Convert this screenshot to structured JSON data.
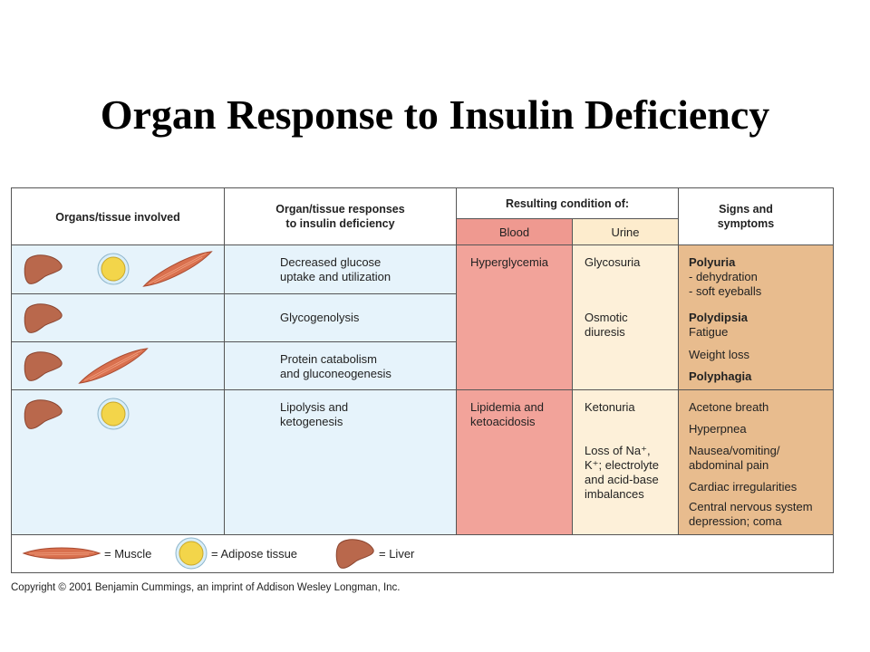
{
  "title": "Organ Response to Insulin Deficiency",
  "table": {
    "headers": {
      "organs": "Organs/tissue involved",
      "responses": [
        "Organ/tissue responses",
        "to insulin deficiency"
      ],
      "resulting": "Resulting condition of:",
      "blood": "Blood",
      "urine": "Urine",
      "signs": [
        "Signs and",
        "symptoms"
      ]
    },
    "responses": [
      [
        "Decreased glucose",
        "uptake and utilization"
      ],
      [
        "Glycogenolysis"
      ],
      [
        "Protein catabolism",
        "and gluconeogenesis"
      ],
      [
        "Lipolysis and",
        "ketogenesis"
      ]
    ],
    "blood": [
      [
        "Hyperglycemia"
      ],
      [
        "Lipidemia and",
        "ketoacidosis"
      ]
    ],
    "urine": [
      [
        "Glycosuria"
      ],
      [
        "Osmotic",
        "diuresis"
      ],
      [
        "Ketonuria"
      ],
      [
        "Loss of Na⁺,",
        "K⁺; electrolyte",
        "and acid-base",
        "imbalances"
      ]
    ],
    "signs": [
      [
        "Polyuria",
        "- dehydration",
        "- soft eyeballs"
      ],
      [
        "Polydipsia",
        "Fatigue"
      ],
      [
        "Weight loss"
      ],
      [
        "Polyphagia"
      ],
      [
        "Acetone breath"
      ],
      [
        "Hyperpnea"
      ],
      [
        "Nausea/vomiting/",
        "abdominal pain"
      ],
      [
        "Cardiac irregularities"
      ],
      [
        "Central nervous system",
        "depression; coma"
      ]
    ]
  },
  "legend": [
    "= Muscle",
    "= Adipose tissue",
    "= Liver"
  ],
  "copyright": "Copyright © 2001 Benjamin Cummings, an imprint of Addison Wesley Longman, Inc."
}
